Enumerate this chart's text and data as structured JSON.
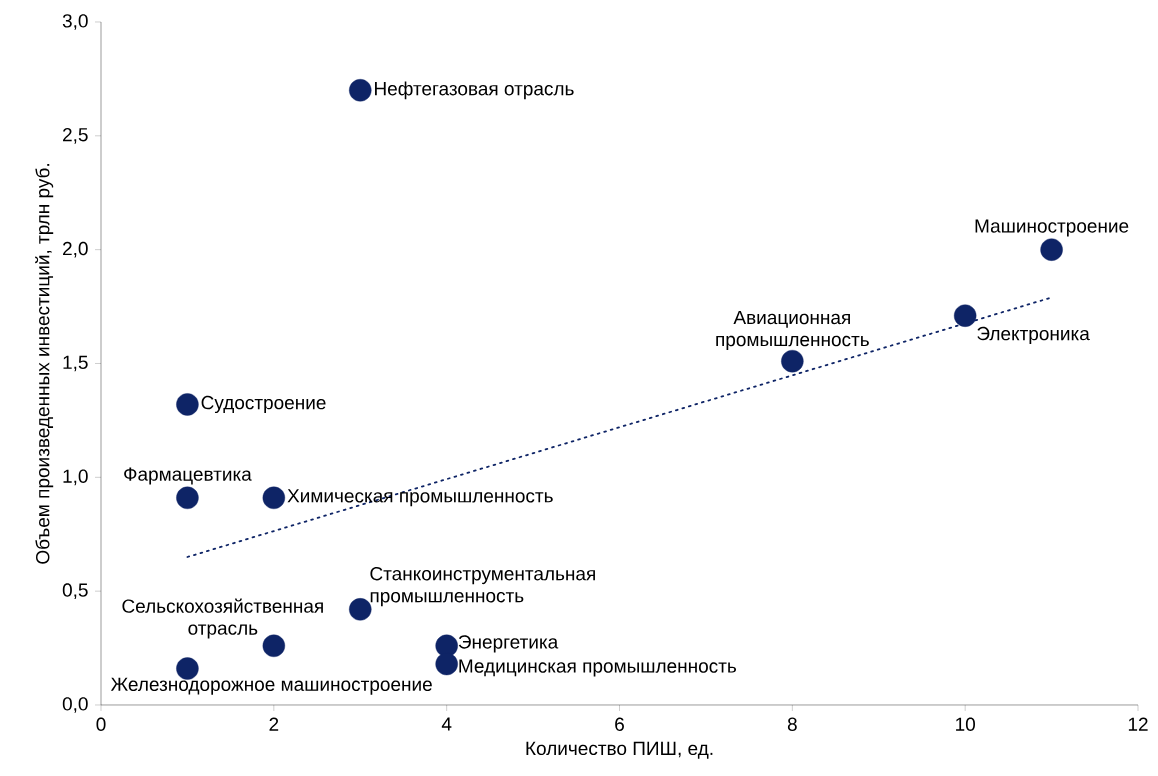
{
  "chart_data": {
    "type": "scatter",
    "xlabel": "Количество ПИШ, ед.",
    "ylabel": "Объем произведенных инвестиций, трлн руб.",
    "xlim": [
      0,
      12
    ],
    "ylim": [
      0,
      3.0
    ],
    "xticks": [
      0,
      2,
      4,
      6,
      8,
      10,
      12
    ],
    "yticks": [
      {
        "value": 0,
        "label": "0,0"
      },
      {
        "value": 0.5,
        "label": "0,5"
      },
      {
        "value": 1.0,
        "label": "1,0"
      },
      {
        "value": 1.5,
        "label": "1,5"
      },
      {
        "value": 2.0,
        "label": "2,0"
      },
      {
        "value": 2.5,
        "label": "2,5"
      },
      {
        "value": 3.0,
        "label": "3,0"
      }
    ],
    "grid": false,
    "series": [
      {
        "color": "#0e2466",
        "marker": "circle",
        "x": [
          3,
          11,
          10,
          8,
          1,
          1,
          2,
          3,
          2,
          4,
          4,
          1
        ],
        "values": [
          2.7,
          2.0,
          1.71,
          1.51,
          1.32,
          0.91,
          0.91,
          0.42,
          0.26,
          0.26,
          0.18,
          0.16
        ]
      },
      {
        "type": "line",
        "color": "#0e2466",
        "line_style": "dotted",
        "marker": "none",
        "x": [
          1,
          11
        ],
        "values": [
          0.65,
          1.79
        ]
      }
    ],
    "annotations": [
      {
        "text": "Нефтегазовая отрасль",
        "x": 3,
        "y": 2.7
      },
      {
        "text": "Машиностроение",
        "x": 11,
        "y": 2.0
      },
      {
        "text": "Электроника",
        "x": 10,
        "y": 1.71
      },
      {
        "text": "Авиационная промышленность",
        "x": 8,
        "y": 1.51
      },
      {
        "text": "Судостроение",
        "x": 1,
        "y": 1.32
      },
      {
        "text": "Фармацевтика",
        "x": 1,
        "y": 0.91
      },
      {
        "text": "Химическая промышленность",
        "x": 2,
        "y": 0.91
      },
      {
        "text": "Станкоинструментальная промышленность",
        "x": 3,
        "y": 0.42
      },
      {
        "text": "Сельскохозяйственная отрасль",
        "x": 2,
        "y": 0.26
      },
      {
        "text": "Энергетика",
        "x": 4,
        "y": 0.26
      },
      {
        "text": "Медицинская промышленность",
        "x": 4,
        "y": 0.18
      },
      {
        "text": "Железнодорожное машиностроение",
        "x": 1,
        "y": 0.16
      }
    ]
  }
}
